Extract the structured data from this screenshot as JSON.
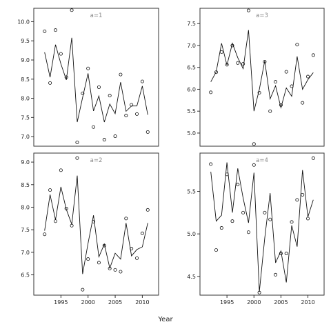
{
  "figure": {
    "xlabel": "Year"
  },
  "chart_data": [
    {
      "type": "scatter",
      "label": "a=1",
      "x": [
        1992,
        1993,
        1994,
        1995,
        1996,
        1997,
        1998,
        1999,
        2000,
        2001,
        2002,
        2003,
        2004,
        2005,
        2006,
        2007,
        2008,
        2009,
        2010,
        2011
      ],
      "observed": [
        9.75,
        8.4,
        9.78,
        9.16,
        8.55,
        10.3,
        6.85,
        8.13,
        8.78,
        7.25,
        8.29,
        6.92,
        8.07,
        7.01,
        8.62,
        7.55,
        7.83,
        7.59,
        8.44,
        7.12
      ],
      "fitted": [
        9.2,
        8.55,
        9.4,
        8.9,
        8.48,
        9.58,
        7.38,
        8.02,
        8.65,
        7.67,
        8.06,
        7.38,
        7.85,
        7.6,
        8.42,
        7.66,
        7.8,
        7.8,
        8.32,
        7.57
      ],
      "xlim": [
        1990,
        2013
      ],
      "ylim": [
        6.75,
        10.35
      ],
      "yticks": [
        "7.0",
        "7.5",
        "8.0",
        "8.5",
        "9.0",
        "9.5",
        "10.0"
      ],
      "xticks": []
    },
    {
      "type": "scatter",
      "label": "a=3",
      "x": [
        1992,
        1993,
        1994,
        1995,
        1996,
        1997,
        1998,
        1999,
        2000,
        2001,
        2002,
        2003,
        2004,
        2005,
        2006,
        2007,
        2008,
        2009,
        2010,
        2011
      ],
      "observed": [
        5.93,
        6.39,
        6.85,
        6.56,
        7.0,
        6.6,
        6.58,
        7.8,
        4.75,
        5.92,
        6.63,
        5.5,
        6.17,
        5.64,
        6.4,
        6.07,
        7.02,
        5.69,
        6.29,
        6.78
      ],
      "fitted": [
        6.17,
        6.4,
        7.05,
        6.55,
        7.05,
        6.72,
        6.47,
        7.35,
        5.5,
        6.0,
        6.65,
        5.78,
        6.08,
        5.58,
        6.03,
        5.84,
        6.75,
        6.0,
        6.22,
        6.38
      ],
      "xlim": [
        1990,
        2013
      ],
      "ylim": [
        4.7,
        7.85
      ],
      "yticks": [
        "5.0",
        "5.5",
        "6.0",
        "6.5",
        "7.0",
        "7.5"
      ],
      "xticks": []
    },
    {
      "type": "scatter",
      "label": "a=2",
      "x": [
        1992,
        1993,
        1994,
        1995,
        1996,
        1997,
        1998,
        1999,
        2000,
        2001,
        2002,
        2003,
        2004,
        2005,
        2006,
        2007,
        2008,
        2009,
        2010,
        2011
      ],
      "observed": [
        7.4,
        8.38,
        7.69,
        8.82,
        7.97,
        7.59,
        9.09,
        6.17,
        6.85,
        7.68,
        6.77,
        7.15,
        6.64,
        6.61,
        6.57,
        7.75,
        7.08,
        6.87,
        7.42,
        7.94
      ],
      "fitted": [
        7.48,
        8.28,
        7.72,
        8.45,
        7.95,
        7.62,
        8.7,
        6.52,
        7.2,
        7.82,
        6.9,
        7.18,
        6.65,
        6.98,
        6.85,
        7.65,
        6.92,
        7.06,
        7.12,
        7.65
      ],
      "xlim": [
        1990,
        2013
      ],
      "ylim": [
        6.05,
        9.2
      ],
      "yticks": [
        "6.5",
        "7.0",
        "7.5",
        "8.0",
        "8.5",
        "9.0"
      ],
      "xticks": [
        "1995",
        "2000",
        "2005",
        "2010"
      ]
    },
    {
      "type": "scatter",
      "label": "a=4",
      "x": [
        1992,
        1993,
        1994,
        1995,
        1996,
        1997,
        1998,
        1999,
        2000,
        2001,
        2002,
        2003,
        2004,
        2005,
        2006,
        2007,
        2008,
        2009,
        2010,
        2011
      ],
      "observed": [
        5.82,
        4.81,
        5.07,
        5.7,
        5.15,
        5.58,
        5.25,
        5.02,
        5.81,
        4.31,
        5.25,
        5.17,
        4.52,
        4.77,
        4.77,
        5.14,
        5.4,
        5.46,
        5.18,
        5.89
      ],
      "fitted": [
        5.73,
        5.15,
        5.22,
        5.84,
        5.25,
        5.77,
        5.42,
        5.13,
        5.72,
        4.32,
        4.95,
        5.48,
        4.66,
        4.8,
        4.43,
        5.1,
        4.85,
        5.75,
        5.2,
        5.4
      ],
      "xlim": [
        1990,
        2013
      ],
      "ylim": [
        4.28,
        5.95
      ],
      "yticks": [
        "4.5",
        "5.0",
        "5.5"
      ],
      "xticks": [
        "1995",
        "2000",
        "2005",
        "2010"
      ]
    }
  ]
}
